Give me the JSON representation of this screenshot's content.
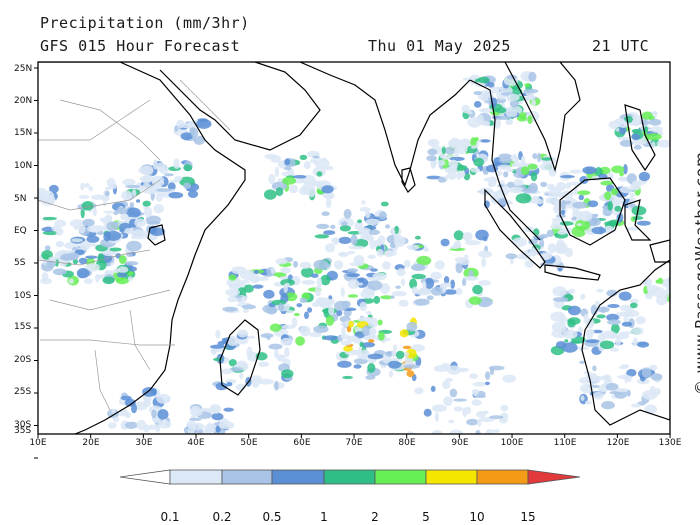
{
  "header": {
    "title": "Precipitation (mm/3hr)",
    "subtitle": "GFS 015 Hour Forecast",
    "date": "Thu 01 May 2025",
    "time": "21 UTC"
  },
  "map": {
    "lat_labels": [
      "25N",
      "20N",
      "15N",
      "10N",
      "5N",
      "EQ",
      "5S",
      "10S",
      "15S",
      "20S",
      "25S",
      "30S",
      "35S"
    ],
    "lon_labels": [
      "10E",
      "20E",
      "30E",
      "40E",
      "50E",
      "60E",
      "70E",
      "80E",
      "90E",
      "100E",
      "110E",
      "120E",
      "130E"
    ],
    "colors": {
      "land_fill": "#ffffff",
      "ocean_fill": "#ffffff",
      "coastline": "#000000",
      "borders": "#9a9a9a"
    }
  },
  "colorbar": {
    "labels": [
      "0.1",
      "0.2",
      "0.5",
      "1",
      "2",
      "5",
      "10",
      "15"
    ],
    "colors": [
      "#ffffff",
      "#dce8f6",
      "#a9c4e6",
      "#5a8fd6",
      "#2fbf86",
      "#66ef55",
      "#f5e600",
      "#f59a16",
      "#e23a3a"
    ]
  },
  "credit": "© www.PassageWeather.com"
}
